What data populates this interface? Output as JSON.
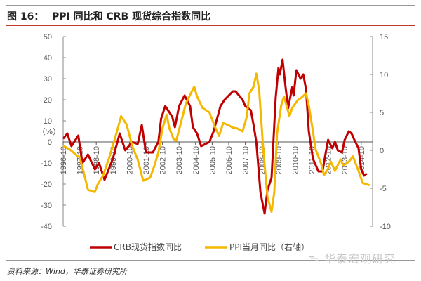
{
  "header": {
    "figure_label": "图 16：",
    "title": "PPI 同比和 CRB 现货综合指数同比"
  },
  "footer": {
    "source": "资料来源：Wind，华泰证券研究所",
    "watermark": "华泰宏观研究"
  },
  "chart_data": {
    "type": "line",
    "title": "PPI 同比和 CRB 现货综合指数同比",
    "ylabel": "（%）",
    "ylim": [
      -40,
      50
    ],
    "y_ticks": [
      "50",
      "40",
      "30",
      "20",
      "10",
      "0",
      "-10",
      "-20",
      "-30",
      "-40"
    ],
    "y2lim": [
      -10,
      15
    ],
    "y2_ticks": [
      "15",
      "10",
      "5",
      "0",
      "-5",
      "-10"
    ],
    "x_ticks": [
      "1996-10",
      "1997-10",
      "1998-10",
      "1999-10",
      "2000-10",
      "2001-10",
      "2002-10",
      "2003-10",
      "2004-10",
      "2005-10",
      "2006-10",
      "2007-10",
      "2008-10",
      "2009-10",
      "2010-10",
      "2011-10",
      "2012-10",
      "2013-10",
      "2014-10"
    ],
    "grid": false,
    "legend_position": "bottom",
    "series": [
      {
        "name": "CRB现货指数同比",
        "axis": "left",
        "color": "#c00000",
        "points": [
          [
            "1996-10",
            1.5
          ],
          [
            "1997-01",
            4
          ],
          [
            "1997-04",
            -2
          ],
          [
            "1997-09",
            3
          ],
          [
            "1997-12",
            -10
          ],
          [
            "1998-04",
            -6
          ],
          [
            "1998-09",
            -13
          ],
          [
            "1998-12",
            -10
          ],
          [
            "1999-04",
            -18
          ],
          [
            "1999-10",
            -8
          ],
          [
            "2000-03",
            4
          ],
          [
            "2000-07",
            -4
          ],
          [
            "2000-12",
            0
          ],
          [
            "2001-04",
            -1
          ],
          [
            "2001-07",
            8
          ],
          [
            "2001-10",
            -5
          ],
          [
            "2002-03",
            -5
          ],
          [
            "2002-07",
            0
          ],
          [
            "2002-09",
            11
          ],
          [
            "2002-12",
            17
          ],
          [
            "2003-05",
            12
          ],
          [
            "2003-07",
            7
          ],
          [
            "2003-10",
            17
          ],
          [
            "2004-02",
            22
          ],
          [
            "2004-06",
            17
          ],
          [
            "2004-08",
            7
          ],
          [
            "2004-11",
            4
          ],
          [
            "2005-02",
            -2
          ],
          [
            "2005-08",
            0
          ],
          [
            "2005-11",
            5
          ],
          [
            "2006-04",
            17
          ],
          [
            "2006-07",
            20
          ],
          [
            "2007-01",
            24
          ],
          [
            "2007-03",
            24
          ],
          [
            "2007-08",
            20
          ],
          [
            "2007-10",
            17
          ],
          [
            "2008-02",
            15
          ],
          [
            "2008-04",
            8
          ],
          [
            "2008-06",
            0
          ],
          [
            "2008-09",
            -24
          ],
          [
            "2008-12",
            -34
          ],
          [
            "2009-02",
            -23
          ],
          [
            "2009-05",
            -17
          ],
          [
            "2009-08",
            21
          ],
          [
            "2009-10",
            35
          ],
          [
            "2009-11",
            32
          ],
          [
            "2010-01",
            39
          ],
          [
            "2010-03",
            27
          ],
          [
            "2010-05",
            16
          ],
          [
            "2010-08",
            26
          ],
          [
            "2010-09",
            22
          ],
          [
            "2010-11",
            34
          ],
          [
            "2011-02",
            30
          ],
          [
            "2011-04",
            32
          ],
          [
            "2011-06",
            25
          ],
          [
            "2011-08",
            5
          ],
          [
            "2011-11",
            -8
          ],
          [
            "2012-03",
            -14
          ],
          [
            "2012-06",
            -14
          ],
          [
            "2012-08",
            -6
          ],
          [
            "2012-10",
            1
          ],
          [
            "2013-01",
            -3
          ],
          [
            "2013-03",
            0
          ],
          [
            "2013-05",
            -4
          ],
          [
            "2013-08",
            -5
          ],
          [
            "2013-10",
            1
          ],
          [
            "2014-01",
            5
          ],
          [
            "2014-03",
            4
          ],
          [
            "2014-05",
            1
          ],
          [
            "2014-08",
            -3
          ],
          [
            "2014-10",
            -13
          ],
          [
            "2014-12",
            -16
          ],
          [
            "2015-02",
            -15
          ]
        ]
      },
      {
        "name": "PPI当月同比（右轴）",
        "axis": "right",
        "color": "#f5b800",
        "points": [
          [
            "1996-10",
            0.6
          ],
          [
            "1997-03",
            0.1
          ],
          [
            "1997-08",
            -0.7
          ],
          [
            "1997-10",
            -0.9
          ],
          [
            "1998-01",
            -3
          ],
          [
            "1998-04",
            -5.2
          ],
          [
            "1998-09",
            -5.5
          ],
          [
            "1998-11",
            -4.5
          ],
          [
            "1999-03",
            -3.3
          ],
          [
            "1999-08",
            -0.6
          ],
          [
            "2000-01",
            2.5
          ],
          [
            "2000-04",
            4.5
          ],
          [
            "2000-08",
            3.4
          ],
          [
            "2000-12",
            0.6
          ],
          [
            "2001-04",
            -1.2
          ],
          [
            "2001-08",
            -4
          ],
          [
            "2002-01",
            -3.6
          ],
          [
            "2002-04",
            -2.1
          ],
          [
            "2002-07",
            -0.3
          ],
          [
            "2002-10",
            2.9
          ],
          [
            "2003-01",
            4.7
          ],
          [
            "2003-03",
            2.9
          ],
          [
            "2003-06",
            1.5
          ],
          [
            "2003-08",
            1.3
          ],
          [
            "2003-11",
            3.4
          ],
          [
            "2004-03",
            6.2
          ],
          [
            "2004-09",
            8.4
          ],
          [
            "2004-11",
            7.1
          ],
          [
            "2005-03",
            5.6
          ],
          [
            "2005-08",
            5
          ],
          [
            "2005-12",
            3.1
          ],
          [
            "2006-03",
            1.9
          ],
          [
            "2006-06",
            3.6
          ],
          [
            "2006-10",
            3.3
          ],
          [
            "2007-01",
            3.0
          ],
          [
            "2007-04",
            2.9
          ],
          [
            "2007-08",
            2.5
          ],
          [
            "2007-11",
            4.4
          ],
          [
            "2008-01",
            7.5
          ],
          [
            "2008-04",
            8.4
          ],
          [
            "2008-06",
            10.1
          ],
          [
            "2008-08",
            8
          ],
          [
            "2008-11",
            0.1
          ],
          [
            "2009-02",
            -6.1
          ],
          [
            "2009-05",
            -8.1
          ],
          [
            "2009-07",
            -5.5
          ],
          [
            "2009-09",
            2.2
          ],
          [
            "2009-12",
            5.9
          ],
          [
            "2010-02",
            7.1
          ],
          [
            "2010-06",
            4.5
          ],
          [
            "2010-08",
            5.6
          ],
          [
            "2010-12",
            6.6
          ],
          [
            "2011-03",
            7
          ],
          [
            "2011-06",
            7.5
          ],
          [
            "2011-08",
            5.9
          ],
          [
            "2011-11",
            2.5
          ],
          [
            "2012-01",
            0.1
          ],
          [
            "2012-05",
            -1.8
          ],
          [
            "2012-07",
            -3.3
          ],
          [
            "2012-10",
            -2.4
          ],
          [
            "2012-12",
            -1.5
          ],
          [
            "2013-03",
            -2.7
          ],
          [
            "2013-07",
            -1.2
          ],
          [
            "2013-09",
            -2
          ],
          [
            "2014-01",
            -1.5
          ],
          [
            "2014-04",
            -0.8
          ],
          [
            "2014-08",
            -2.7
          ],
          [
            "2014-11",
            -4.3
          ],
          [
            "2015-04",
            -4.6
          ]
        ]
      }
    ]
  }
}
